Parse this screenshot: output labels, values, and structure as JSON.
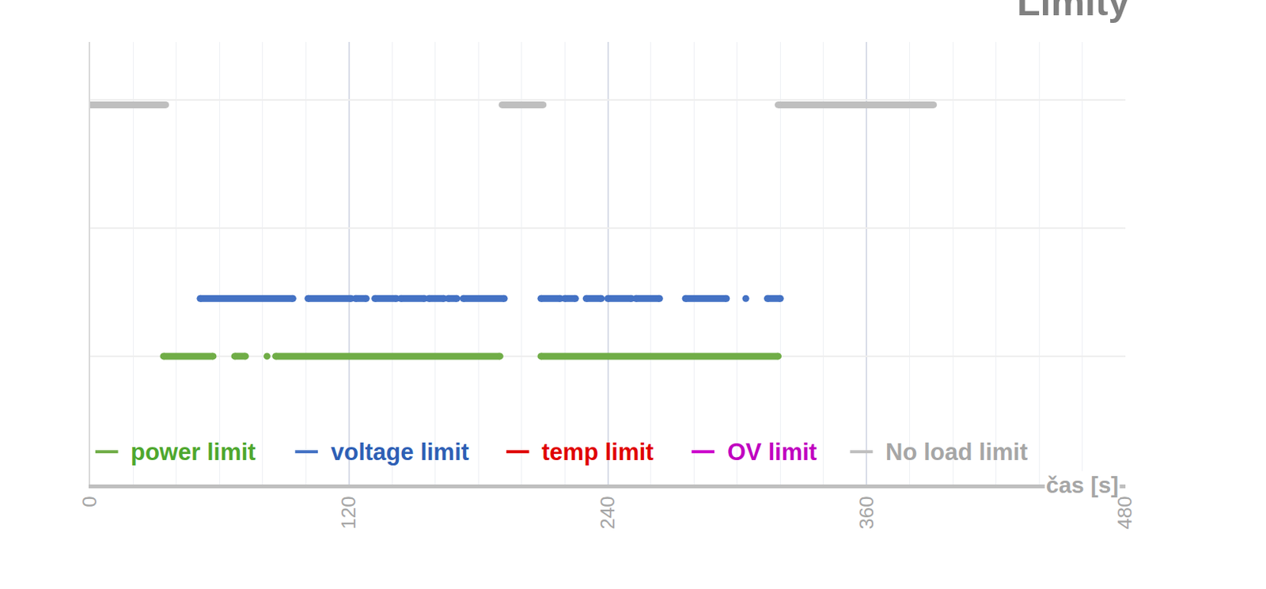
{
  "chart_data": {
    "type": "line",
    "title": "Limity",
    "x_label": "čas [s]",
    "xlim": [
      0,
      480
    ],
    "xticks": [
      0,
      120,
      240,
      360,
      480
    ],
    "ylim": [
      0,
      3.45
    ],
    "yticks": [
      0,
      1,
      2,
      3
    ],
    "tick_labels": "x",
    "grid": true,
    "legend": "bottom",
    "series": [
      {
        "name": "power limit",
        "color": "#70ad47",
        "x": [
          34,
          57,
          58,
          67,
          72,
          73,
          82,
          83,
          86,
          190,
          191,
          209,
          319
        ],
        "values": [
          1,
          1,
          null,
          1,
          1,
          null,
          1,
          null,
          1,
          1,
          null,
          1,
          1
        ]
      },
      {
        "name": "voltage limit",
        "color": "#4472c4",
        "x": [
          51,
          94,
          95,
          101,
          121,
          122,
          123,
          128,
          129,
          132,
          142,
          143,
          144,
          155,
          156,
          157,
          164,
          165,
          166,
          170,
          171,
          173,
          192,
          193,
          209,
          218,
          219,
          220,
          225,
          226,
          230,
          237,
          238,
          240,
          251,
          252,
          253,
          264,
          265,
          276,
          295,
          296,
          304,
          305,
          314,
          320
        ],
        "values": [
          1.45,
          1.45,
          null,
          1.45,
          1.45,
          null,
          1.45,
          1.45,
          null,
          1.45,
          1.45,
          null,
          1.45,
          1.45,
          null,
          1.45,
          1.45,
          null,
          1.45,
          1.45,
          null,
          1.45,
          1.45,
          null,
          1.45,
          1.45,
          null,
          1.45,
          1.45,
          null,
          1.45,
          1.45,
          null,
          1.45,
          1.45,
          null,
          1.45,
          1.45,
          null,
          1.45,
          1.45,
          null,
          1.45,
          null,
          1.45,
          1.45
        ]
      },
      {
        "name": "temp limit",
        "color": "#e00000",
        "x": [],
        "values": []
      },
      {
        "name": "OV limit",
        "color": "#cc00cc",
        "x": [],
        "values": []
      },
      {
        "name": "No load limit",
        "color": "#bfbfbf",
        "x": [
          0,
          35,
          36,
          191,
          210,
          211,
          319,
          391
        ],
        "values": [
          2.96,
          2.96,
          null,
          2.96,
          2.96,
          null,
          2.96,
          2.96
        ]
      }
    ]
  }
}
